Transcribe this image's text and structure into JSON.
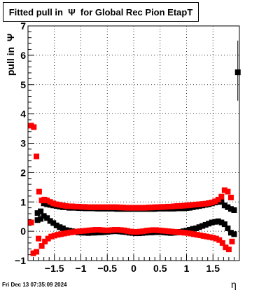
{
  "chart_data": {
    "type": "scatter",
    "title": "Fitted pull in  Ψ  for Global Rec Pion EtapT",
    "xlabel": "η",
    "ylabel": "pull in  Ψ",
    "xlim": [
      -2.0,
      2.0
    ],
    "ylim": [
      -1,
      7
    ],
    "x_ticks": [
      -1.5,
      -1,
      -0.5,
      0,
      0.5,
      1,
      1.5
    ],
    "x_tick_labels": [
      "−1.5",
      "−1",
      "−0.5",
      "0",
      "0.5",
      "1",
      "1.5"
    ],
    "y_ticks": [
      -1,
      0,
      1,
      2,
      3,
      4,
      5,
      6,
      7
    ],
    "y_tick_labels": [
      "−1",
      "0",
      "1",
      "2",
      "3",
      "4",
      "5",
      "6",
      "7"
    ],
    "grid": true,
    "series": [
      {
        "color": "#000000",
        "points": [
          [
            -1.82,
            0.62
          ],
          [
            -1.76,
            0.68
          ],
          [
            -1.7,
            0.95
          ],
          [
            -1.64,
            0.92
          ],
          [
            -1.58,
            0.9
          ],
          [
            -1.52,
            0.88
          ],
          [
            -1.46,
            0.86
          ],
          [
            -1.4,
            0.84
          ],
          [
            -1.34,
            0.82
          ],
          [
            -1.28,
            0.82
          ],
          [
            -1.22,
            0.8
          ],
          [
            -1.16,
            0.8
          ],
          [
            -1.1,
            0.8
          ],
          [
            -1.04,
            0.79
          ],
          [
            -0.98,
            0.79
          ],
          [
            -0.92,
            0.78
          ],
          [
            -0.86,
            0.78
          ],
          [
            -0.8,
            0.78
          ],
          [
            -0.74,
            0.78
          ],
          [
            -0.68,
            0.77
          ],
          [
            -0.62,
            0.77
          ],
          [
            -0.56,
            0.77
          ],
          [
            -0.5,
            0.77
          ],
          [
            -0.44,
            0.77
          ],
          [
            -0.38,
            0.77
          ],
          [
            -0.32,
            0.76
          ],
          [
            -0.26,
            0.76
          ],
          [
            -0.2,
            0.76
          ],
          [
            -0.14,
            0.76
          ],
          [
            -0.08,
            0.76
          ],
          [
            -0.02,
            0.76
          ],
          [
            0.04,
            0.76
          ],
          [
            0.1,
            0.76
          ],
          [
            0.16,
            0.76
          ],
          [
            0.22,
            0.76
          ],
          [
            0.28,
            0.76
          ],
          [
            0.34,
            0.76
          ],
          [
            0.4,
            0.76
          ],
          [
            0.46,
            0.77
          ],
          [
            0.52,
            0.77
          ],
          [
            0.58,
            0.77
          ],
          [
            0.64,
            0.77
          ],
          [
            0.7,
            0.77
          ],
          [
            0.76,
            0.77
          ],
          [
            0.82,
            0.78
          ],
          [
            0.88,
            0.78
          ],
          [
            0.94,
            0.78
          ],
          [
            1.0,
            0.79
          ],
          [
            1.06,
            0.8
          ],
          [
            1.12,
            0.82
          ],
          [
            1.18,
            0.84
          ],
          [
            1.24,
            0.86
          ],
          [
            1.3,
            0.88
          ],
          [
            1.36,
            0.9
          ],
          [
            1.42,
            0.92
          ],
          [
            1.48,
            0.95
          ],
          [
            1.54,
            0.98
          ],
          [
            1.6,
            1.0
          ],
          [
            1.66,
            1.0
          ],
          [
            1.72,
            0.88
          ],
          [
            1.78,
            0.82
          ],
          [
            1.84,
            0.76
          ],
          [
            1.9,
            0.72
          ],
          [
            -1.82,
            0.38
          ],
          [
            -1.76,
            0.42
          ],
          [
            -1.7,
            0.52
          ],
          [
            -1.64,
            0.45
          ],
          [
            -1.58,
            0.35
          ],
          [
            -1.52,
            0.28
          ],
          [
            -1.46,
            0.2
          ],
          [
            -1.4,
            0.14
          ],
          [
            -1.34,
            0.1
          ],
          [
            -1.28,
            0.04
          ],
          [
            -1.22,
            0.02
          ],
          [
            -1.16,
            0.0
          ],
          [
            -1.1,
            -0.02
          ],
          [
            -1.04,
            -0.04
          ],
          [
            -0.98,
            -0.05
          ],
          [
            -0.92,
            -0.05
          ],
          [
            -0.86,
            -0.06
          ],
          [
            -0.8,
            -0.05
          ],
          [
            -0.74,
            -0.05
          ],
          [
            -0.68,
            -0.04
          ],
          [
            -0.62,
            -0.04
          ],
          [
            -0.56,
            -0.03
          ],
          [
            -0.5,
            -0.02
          ],
          [
            -0.44,
            -0.01
          ],
          [
            -0.38,
            0.0
          ],
          [
            -0.32,
            0.0
          ],
          [
            -0.26,
            -0.01
          ],
          [
            -0.2,
            -0.02
          ],
          [
            -0.14,
            -0.03
          ],
          [
            -0.08,
            -0.05
          ],
          [
            -0.02,
            -0.06
          ],
          [
            0.04,
            -0.07
          ],
          [
            0.1,
            -0.07
          ],
          [
            0.16,
            -0.06
          ],
          [
            0.22,
            -0.05
          ],
          [
            0.28,
            -0.04
          ],
          [
            0.34,
            -0.04
          ],
          [
            0.4,
            -0.03
          ],
          [
            0.46,
            -0.03
          ],
          [
            0.52,
            -0.03
          ],
          [
            0.58,
            -0.04
          ],
          [
            0.64,
            -0.05
          ],
          [
            0.7,
            -0.06
          ],
          [
            0.76,
            -0.05
          ],
          [
            0.82,
            -0.04
          ],
          [
            0.88,
            -0.02
          ],
          [
            0.94,
            0.0
          ],
          [
            1.0,
            0.02
          ],
          [
            1.06,
            0.05
          ],
          [
            1.12,
            0.08
          ],
          [
            1.18,
            0.1
          ],
          [
            1.24,
            0.14
          ],
          [
            1.3,
            0.18
          ],
          [
            1.36,
            0.22
          ],
          [
            1.42,
            0.26
          ],
          [
            1.48,
            0.3
          ],
          [
            1.54,
            0.32
          ],
          [
            1.6,
            0.34
          ],
          [
            1.66,
            0.3
          ],
          [
            1.72,
            0.24
          ],
          [
            1.78,
            0.1
          ],
          [
            1.84,
            -0.05
          ],
          [
            1.9,
            -0.1
          ],
          [
            1.97,
            5.42
          ]
        ]
      },
      {
        "color": "#ff0000",
        "points": [
          [
            -1.94,
            3.6
          ],
          [
            -1.89,
            3.55
          ],
          [
            -1.84,
            2.55
          ],
          [
            -1.79,
            1.35
          ],
          [
            -1.74,
            1.05
          ],
          [
            -1.69,
            1.08
          ],
          [
            -1.64,
            1.05
          ],
          [
            -1.58,
            1.0
          ],
          [
            -1.52,
            0.95
          ],
          [
            -1.46,
            0.92
          ],
          [
            -1.4,
            0.9
          ],
          [
            -1.34,
            0.88
          ],
          [
            -1.28,
            0.86
          ],
          [
            -1.22,
            0.85
          ],
          [
            -1.16,
            0.85
          ],
          [
            -1.1,
            0.84
          ],
          [
            -1.04,
            0.84
          ],
          [
            -0.98,
            0.83
          ],
          [
            -0.92,
            0.83
          ],
          [
            -0.86,
            0.82
          ],
          [
            -0.8,
            0.82
          ],
          [
            -0.74,
            0.82
          ],
          [
            -0.68,
            0.82
          ],
          [
            -0.62,
            0.82
          ],
          [
            -0.56,
            0.82
          ],
          [
            -0.5,
            0.82
          ],
          [
            -0.44,
            0.82
          ],
          [
            -0.38,
            0.82
          ],
          [
            -0.32,
            0.82
          ],
          [
            -0.26,
            0.81
          ],
          [
            -0.2,
            0.81
          ],
          [
            -0.14,
            0.8
          ],
          [
            -0.08,
            0.8
          ],
          [
            -0.02,
            0.8
          ],
          [
            0.04,
            0.8
          ],
          [
            0.1,
            0.8
          ],
          [
            0.16,
            0.8
          ],
          [
            0.22,
            0.8
          ],
          [
            0.28,
            0.81
          ],
          [
            0.34,
            0.81
          ],
          [
            0.4,
            0.82
          ],
          [
            0.46,
            0.82
          ],
          [
            0.52,
            0.83
          ],
          [
            0.58,
            0.83
          ],
          [
            0.64,
            0.84
          ],
          [
            0.7,
            0.84
          ],
          [
            0.76,
            0.85
          ],
          [
            0.82,
            0.86
          ],
          [
            0.88,
            0.86
          ],
          [
            0.94,
            0.87
          ],
          [
            1.0,
            0.88
          ],
          [
            1.06,
            0.89
          ],
          [
            1.12,
            0.9
          ],
          [
            1.18,
            0.91
          ],
          [
            1.24,
            0.92
          ],
          [
            1.3,
            0.93
          ],
          [
            1.36,
            0.94
          ],
          [
            1.42,
            0.96
          ],
          [
            1.48,
            0.98
          ],
          [
            1.54,
            1.02
          ],
          [
            1.6,
            1.08
          ],
          [
            1.66,
            1.18
          ],
          [
            1.72,
            1.4
          ],
          [
            1.78,
            1.35
          ],
          [
            1.84,
            1.15
          ],
          [
            -1.94,
            0.3
          ],
          [
            -1.9,
            -0.75
          ],
          [
            -1.84,
            -0.7
          ],
          [
            -1.8,
            -0.25
          ],
          [
            -1.74,
            -0.5
          ],
          [
            -1.68,
            -0.35
          ],
          [
            -1.62,
            -0.25
          ],
          [
            -1.56,
            -0.18
          ],
          [
            -1.5,
            -0.15
          ],
          [
            -1.44,
            -0.12
          ],
          [
            -1.38,
            -0.1
          ],
          [
            -1.32,
            -0.08
          ],
          [
            -1.26,
            -0.06
          ],
          [
            -1.2,
            -0.04
          ],
          [
            -1.14,
            -0.03
          ],
          [
            -1.08,
            -0.01
          ],
          [
            -1.02,
            0.0
          ],
          [
            -0.96,
            0.01
          ],
          [
            -0.9,
            0.02
          ],
          [
            -0.84,
            0.03
          ],
          [
            -0.78,
            0.04
          ],
          [
            -0.72,
            0.05
          ],
          [
            -0.66,
            0.05
          ],
          [
            -0.6,
            0.04
          ],
          [
            -0.54,
            0.03
          ],
          [
            -0.48,
            0.03
          ],
          [
            -0.42,
            0.04
          ],
          [
            -0.36,
            0.05
          ],
          [
            -0.3,
            0.05
          ],
          [
            -0.24,
            0.04
          ],
          [
            -0.18,
            0.03
          ],
          [
            -0.12,
            0.01
          ],
          [
            -0.06,
            -0.01
          ],
          [
            0.0,
            -0.02
          ],
          [
            0.06,
            -0.02
          ],
          [
            0.12,
            -0.01
          ],
          [
            0.18,
            0.0
          ],
          [
            0.24,
            0.02
          ],
          [
            0.3,
            0.03
          ],
          [
            0.36,
            0.04
          ],
          [
            0.42,
            0.04
          ],
          [
            0.48,
            0.03
          ],
          [
            0.54,
            0.02
          ],
          [
            0.6,
            0.01
          ],
          [
            0.66,
            0.0
          ],
          [
            0.72,
            -0.01
          ],
          [
            0.78,
            -0.02
          ],
          [
            0.84,
            -0.03
          ],
          [
            0.9,
            -0.04
          ],
          [
            0.96,
            -0.05
          ],
          [
            1.02,
            -0.06
          ],
          [
            1.08,
            -0.08
          ],
          [
            1.14,
            -0.1
          ],
          [
            1.2,
            -0.12
          ],
          [
            1.26,
            -0.14
          ],
          [
            1.32,
            -0.16
          ],
          [
            1.38,
            -0.18
          ],
          [
            1.44,
            -0.2
          ],
          [
            1.5,
            -0.22
          ],
          [
            1.56,
            -0.25
          ],
          [
            1.62,
            -0.3
          ],
          [
            1.68,
            -0.4
          ],
          [
            1.74,
            -0.55
          ],
          [
            1.8,
            -0.62
          ],
          [
            1.86,
            -0.35
          ]
        ]
      }
    ],
    "error_bar": {
      "x": 1.97,
      "low": 4.45,
      "high": 6.5
    }
  },
  "footer": {
    "datestamp": "Fri Dec 13 07:35:09 2024"
  }
}
